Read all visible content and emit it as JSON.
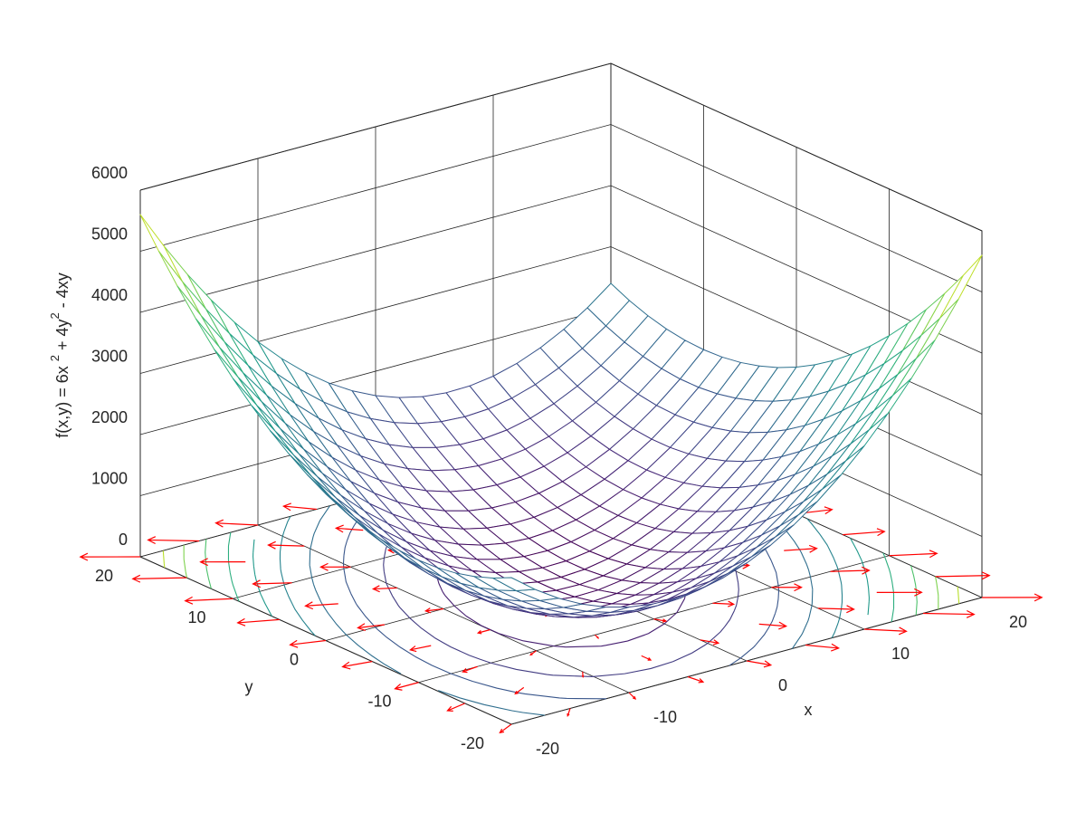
{
  "chart_data": {
    "type": "mesh3d",
    "xlabel": "x",
    "ylabel": "y",
    "zlabel": [
      "f(x,y) = 6x ",
      "2",
      " + 4y",
      "2",
      " - 4xy"
    ],
    "x": [
      -20,
      -18,
      -16,
      -14,
      -12,
      -10,
      -8,
      -6,
      -4,
      -2,
      0,
      2,
      4,
      6,
      8,
      10,
      12,
      14,
      16,
      18,
      20
    ],
    "y": [
      -20,
      -18,
      -16,
      -14,
      -12,
      -10,
      -8,
      -6,
      -4,
      -2,
      0,
      2,
      4,
      6,
      8,
      10,
      12,
      14,
      16,
      18,
      20
    ],
    "z": [
      [
        2400,
        2104,
        1856,
        1656,
        1504,
        1400,
        1344,
        1336,
        1376,
        1464,
        1600,
        1784,
        2016,
        2296,
        2624,
        3000,
        3424,
        3896,
        4416,
        4984,
        5600
      ],
      [
        2256,
        1944,
        1680,
        1464,
        1296,
        1176,
        1104,
        1080,
        1104,
        1176,
        1296,
        1464,
        1680,
        1944,
        2256,
        2616,
        3024,
        3480,
        3984,
        4536,
        5136
      ],
      [
        2144,
        1816,
        1536,
        1304,
        1120,
        984,
        896,
        856,
        864,
        920,
        1024,
        1176,
        1376,
        1624,
        1920,
        2264,
        2656,
        3096,
        3584,
        4120,
        4704
      ],
      [
        2064,
        1720,
        1424,
        1176,
        976,
        824,
        720,
        664,
        656,
        696,
        784,
        920,
        1104,
        1336,
        1616,
        1944,
        2320,
        2744,
        3216,
        3736,
        4304
      ],
      [
        2016,
        1656,
        1344,
        1080,
        864,
        696,
        576,
        504,
        480,
        504,
        576,
        696,
        864,
        1080,
        1344,
        1656,
        2016,
        2424,
        2880,
        3384,
        3936
      ],
      [
        2000,
        1624,
        1296,
        1016,
        784,
        600,
        464,
        376,
        336,
        344,
        400,
        504,
        656,
        856,
        1104,
        1400,
        1744,
        2136,
        2576,
        3064,
        3600
      ],
      [
        2016,
        1624,
        1280,
        984,
        736,
        536,
        384,
        280,
        224,
        216,
        256,
        344,
        480,
        664,
        896,
        1176,
        1504,
        1880,
        2304,
        2776,
        3296
      ],
      [
        2064,
        1656,
        1296,
        984,
        720,
        504,
        336,
        216,
        144,
        120,
        144,
        216,
        336,
        504,
        720,
        984,
        1296,
        1656,
        2064,
        2520,
        3024
      ],
      [
        2144,
        1720,
        1344,
        1016,
        736,
        504,
        320,
        184,
        96,
        56,
        64,
        120,
        224,
        376,
        576,
        824,
        1120,
        1464,
        1856,
        2296,
        2784
      ],
      [
        2256,
        1816,
        1424,
        1080,
        784,
        536,
        336,
        184,
        80,
        24,
        16,
        56,
        144,
        280,
        464,
        696,
        976,
        1304,
        1680,
        2104,
        2576
      ],
      [
        2400,
        1944,
        1536,
        1176,
        864,
        600,
        384,
        216,
        96,
        24,
        0,
        24,
        96,
        216,
        384,
        600,
        864,
        1176,
        1536,
        1944,
        2400
      ],
      [
        2576,
        2104,
        1680,
        1304,
        976,
        696,
        464,
        280,
        144,
        56,
        16,
        24,
        80,
        184,
        336,
        536,
        784,
        1080,
        1424,
        1816,
        2256
      ],
      [
        2784,
        2296,
        1856,
        1464,
        1120,
        824,
        576,
        376,
        224,
        120,
        64,
        56,
        96,
        184,
        320,
        504,
        736,
        1016,
        1344,
        1720,
        2144
      ],
      [
        3024,
        2520,
        2064,
        1656,
        1296,
        984,
        720,
        504,
        336,
        216,
        144,
        120,
        144,
        216,
        336,
        504,
        720,
        984,
        1296,
        1656,
        2064
      ],
      [
        3296,
        2776,
        2304,
        1880,
        1504,
        1176,
        896,
        664,
        480,
        344,
        256,
        216,
        224,
        280,
        384,
        536,
        736,
        984,
        1280,
        1624,
        2016
      ],
      [
        3600,
        3064,
        2576,
        2136,
        1744,
        1400,
        1104,
        856,
        656,
        504,
        400,
        344,
        336,
        376,
        464,
        600,
        784,
        1016,
        1296,
        1624,
        2000
      ],
      [
        3936,
        3384,
        2880,
        2424,
        2016,
        1656,
        1344,
        1080,
        864,
        696,
        576,
        504,
        480,
        504,
        576,
        696,
        864,
        1080,
        1344,
        1656,
        2016
      ],
      [
        4304,
        3736,
        3216,
        2744,
        2320,
        1944,
        1616,
        1336,
        1104,
        920,
        784,
        696,
        656,
        664,
        720,
        824,
        976,
        1176,
        1424,
        1720,
        2064
      ],
      [
        4704,
        4120,
        3584,
        3096,
        2656,
        2264,
        1920,
        1624,
        1376,
        1176,
        1024,
        920,
        864,
        856,
        896,
        984,
        1120,
        1304,
        1536,
        1816,
        2144
      ],
      [
        5136,
        4536,
        3984,
        3480,
        3024,
        2616,
        2256,
        1944,
        1680,
        1464,
        1296,
        1176,
        1104,
        1080,
        1104,
        1176,
        1296,
        1464,
        1680,
        1944,
        2256
      ],
      [
        5600,
        4984,
        4416,
        3896,
        3424,
        3000,
        2624,
        2296,
        2016,
        1784,
        1600,
        1464,
        1376,
        1336,
        1344,
        1400,
        1504,
        1656,
        1856,
        2104,
        2400
      ]
    ],
    "xlim": [
      -20,
      20
    ],
    "ylim": [
      -20,
      20
    ],
    "zlim": [
      0,
      6000
    ],
    "xticks": [
      -20,
      -10,
      0,
      10,
      20
    ],
    "yticks": [
      -20,
      -10,
      0,
      10,
      20
    ],
    "zticks": [
      0,
      1000,
      2000,
      3000,
      4000,
      5000,
      6000
    ],
    "grid": true,
    "colormap": "viridis",
    "contour_levels": [
      500,
      1000,
      1500,
      2000,
      2500,
      3000,
      3500,
      4000,
      4500,
      5000
    ],
    "quiver": {
      "color": "#ff0000",
      "x": [
        -20,
        -15,
        -10,
        -5,
        0,
        5,
        10,
        15,
        20
      ],
      "y": [
        -20,
        -15,
        -10,
        -5,
        0,
        5,
        10,
        15,
        20
      ],
      "u": [
        [
          -160,
          -100,
          -40,
          20,
          80,
          140,
          200,
          260,
          320
        ],
        [
          -180,
          -120,
          -60,
          0,
          60,
          120,
          180,
          240,
          300
        ],
        [
          -200,
          -140,
          -80,
          -20,
          40,
          100,
          160,
          220,
          280
        ],
        [
          -220,
          -160,
          -100,
          -40,
          20,
          80,
          140,
          200,
          260
        ],
        [
          -240,
          -180,
          -120,
          -60,
          0,
          60,
          120,
          180,
          240
        ],
        [
          -260,
          -200,
          -140,
          -80,
          -20,
          40,
          100,
          160,
          220
        ],
        [
          -280,
          -220,
          -160,
          -100,
          -40,
          20,
          80,
          140,
          200
        ],
        [
          -300,
          -240,
          -180,
          -120,
          -60,
          0,
          60,
          120,
          180
        ],
        [
          -320,
          -260,
          -200,
          -140,
          -80,
          -20,
          40,
          100,
          160
        ]
      ],
      "v": [
        [
          -80,
          -100,
          -120,
          -140,
          -160,
          -180,
          -200,
          -220,
          -240
        ],
        [
          -40,
          -60,
          -80,
          -100,
          -120,
          -140,
          -160,
          -180,
          -200
        ],
        [
          0,
          -20,
          -40,
          -60,
          -80,
          -100,
          -120,
          -140,
          -160
        ],
        [
          40,
          20,
          0,
          -20,
          -40,
          -60,
          -80,
          -100,
          -120
        ],
        [
          80,
          60,
          40,
          20,
          0,
          -20,
          -40,
          -60,
          -80
        ],
        [
          120,
          100,
          80,
          60,
          40,
          20,
          0,
          -20,
          -40
        ],
        [
          160,
          140,
          120,
          100,
          80,
          60,
          40,
          20,
          0
        ],
        [
          200,
          180,
          160,
          140,
          120,
          100,
          80,
          60,
          40
        ],
        [
          240,
          220,
          200,
          180,
          160,
          140,
          120,
          100,
          80
        ]
      ]
    }
  }
}
